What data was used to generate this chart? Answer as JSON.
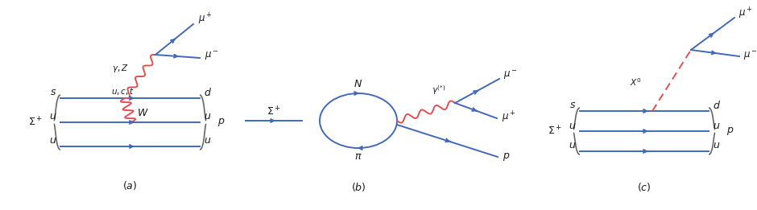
{
  "blue": "#4169b8",
  "red": "#e05050",
  "dark": "#1a1a1a",
  "gray": "#666666",
  "bg": "#ffffff",
  "fig_width": 9.4,
  "fig_height": 2.61,
  "dpi": 100
}
